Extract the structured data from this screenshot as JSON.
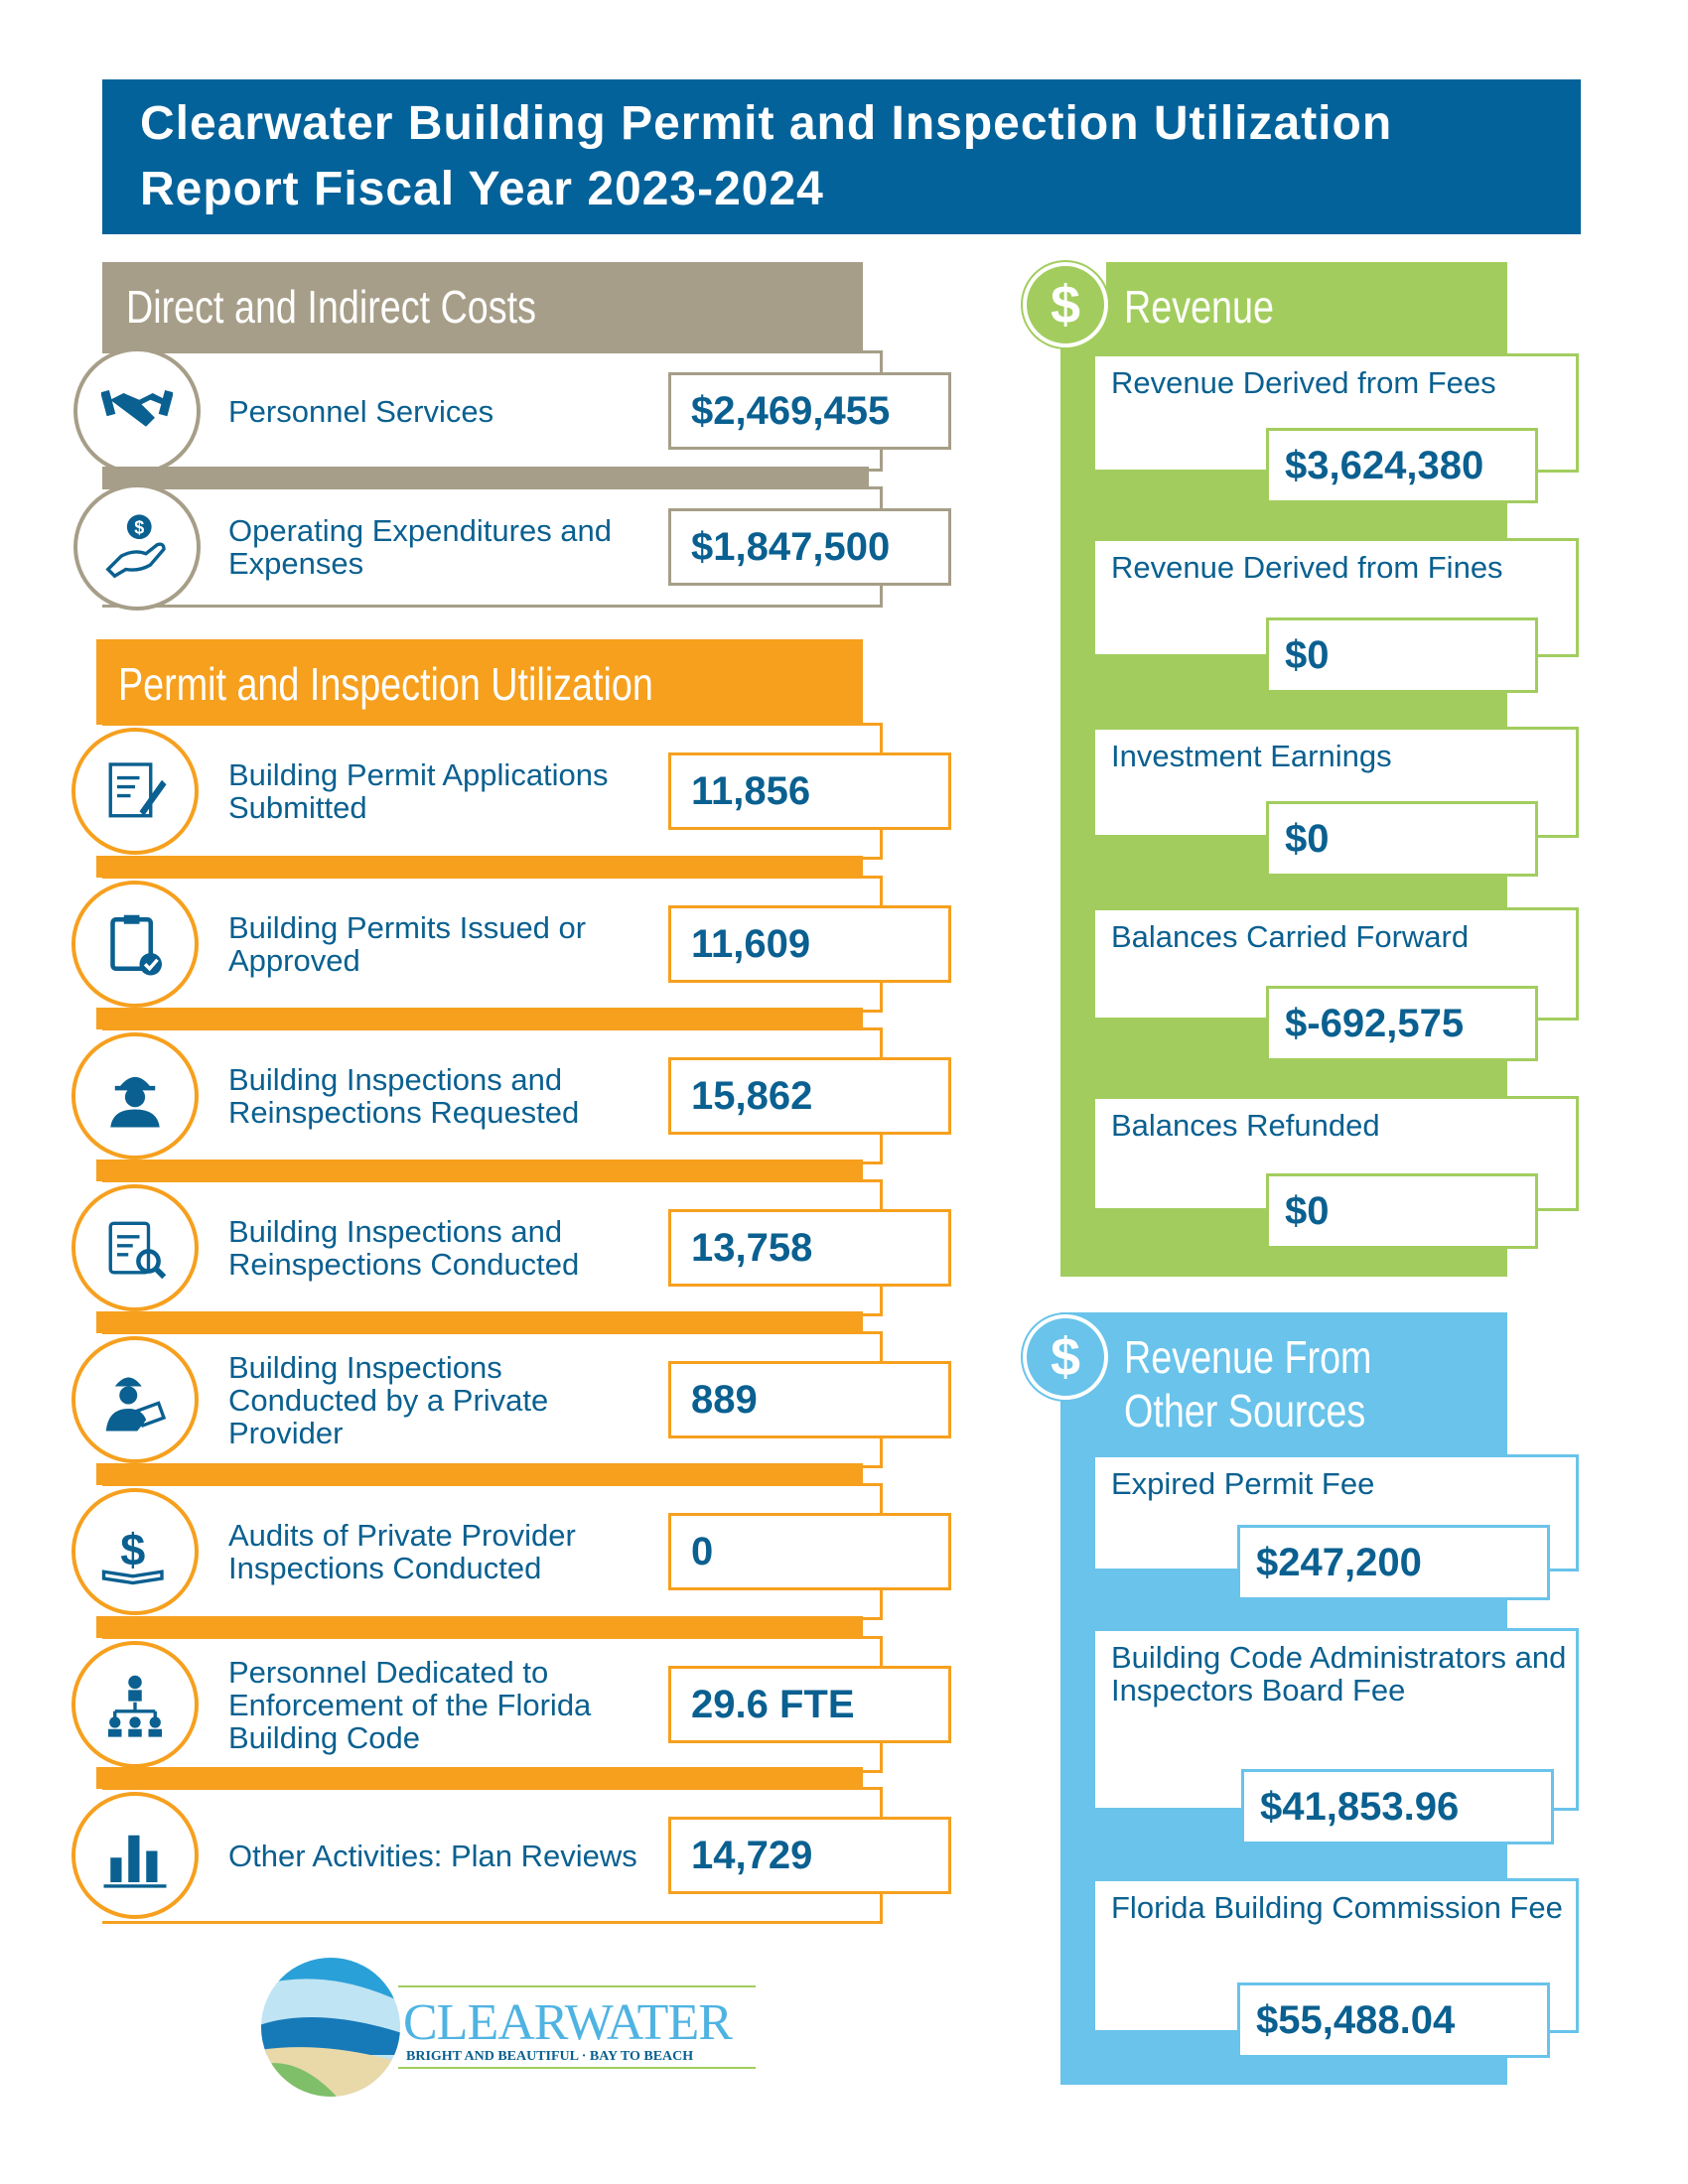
{
  "title": "Clearwater Building Permit and Inspection Utilization Report Fiscal Year 2023-2024",
  "colors": {
    "title_bg": "#04629a",
    "costs": "#a69e88",
    "permit": "#f6a01e",
    "revenue": "#a2cd5e",
    "other": "#69c3ea",
    "text": "#0a6090"
  },
  "costs": {
    "heading": "Direct and Indirect Costs",
    "items": [
      {
        "label": "Personnel Services",
        "value": "$2,469,455",
        "icon": "handshake-icon"
      },
      {
        "label": "Operating Expenditures and Expenses",
        "value": "$1,847,500",
        "icon": "hand-coin-icon"
      }
    ]
  },
  "permit": {
    "heading": "Permit and Inspection Utilization",
    "items": [
      {
        "label": "Building Permit Applications Submitted",
        "value": "11,856",
        "icon": "application-pencil-icon"
      },
      {
        "label": "Building Permits Issued or Approved",
        "value": "11,609",
        "icon": "clipboard-check-icon"
      },
      {
        "label": "Building Inspections and Reinspections Requested",
        "value": "15,862",
        "icon": "inspector-hardhat-icon"
      },
      {
        "label": "Building Inspections and Reinspections Conducted",
        "value": "13,758",
        "icon": "clipboard-magnifier-icon"
      },
      {
        "label": "Building Inspections Conducted by a Private Provider",
        "value": "889",
        "icon": "worker-tablet-icon"
      },
      {
        "label": "Audits of Private Provider Inspections Conducted",
        "value": "0",
        "icon": "book-dollar-icon"
      },
      {
        "label": "Personnel Dedicated to Enforcement of the Florida Building Code",
        "value": "29.6 FTE",
        "icon": "org-people-icon"
      },
      {
        "label": "Other Activities: Plan Reviews",
        "value": "14,729",
        "icon": "bar-chart-icon"
      }
    ]
  },
  "revenue": {
    "heading": "Revenue",
    "icon": "dollar-icon",
    "items": [
      {
        "label": "Revenue Derived from Fees",
        "value": "$3,624,380"
      },
      {
        "label": "Revenue Derived from Fines",
        "value": "$0"
      },
      {
        "label": "Investment Earnings",
        "value": "$0"
      },
      {
        "label": "Balances Carried Forward",
        "value": "$-692,575"
      },
      {
        "label": "Balances Refunded",
        "value": "$0"
      }
    ]
  },
  "other": {
    "heading_line1": "Revenue From",
    "heading_line2": "Other Sources",
    "icon": "dollar-icon",
    "items": [
      {
        "label": "Expired Permit Fee",
        "value": "$247,200"
      },
      {
        "label": "Building Code Administrators and Inspectors Board Fee",
        "value": "$41,853.96"
      },
      {
        "label": "Florida Building Commission Fee",
        "value": "$55,488.04"
      }
    ]
  },
  "logo": {
    "name": "CLEARWATER",
    "tagline": "BRIGHT AND BEAUTIFUL · BAY TO BEACH"
  }
}
